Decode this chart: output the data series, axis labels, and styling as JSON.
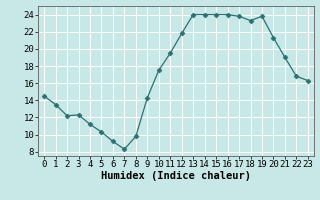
{
  "x": [
    0,
    1,
    2,
    3,
    4,
    5,
    6,
    7,
    8,
    9,
    10,
    11,
    12,
    13,
    14,
    15,
    16,
    17,
    18,
    19,
    20,
    21,
    22,
    23
  ],
  "y": [
    14.5,
    13.5,
    12.2,
    12.3,
    11.2,
    10.3,
    9.2,
    8.3,
    9.8,
    14.3,
    17.5,
    19.5,
    21.8,
    24.0,
    24.0,
    24.0,
    24.0,
    23.8,
    23.3,
    23.8,
    21.3,
    19.0,
    16.8,
    16.3
  ],
  "line_color": "#2d7070",
  "marker": "D",
  "marker_size": 2.5,
  "bg_color": "#c8e8e8",
  "grid_color": "#ffffff",
  "xlabel": "Humidex (Indice chaleur)",
  "xlabel_fontsize": 7.5,
  "tick_fontsize": 6.5,
  "ylim": [
    7.5,
    25.0
  ],
  "xlim": [
    -0.5,
    23.5
  ],
  "yticks": [
    8,
    10,
    12,
    14,
    16,
    18,
    20,
    22,
    24
  ],
  "xticks": [
    0,
    1,
    2,
    3,
    4,
    5,
    6,
    7,
    8,
    9,
    10,
    11,
    12,
    13,
    14,
    15,
    16,
    17,
    18,
    19,
    20,
    21,
    22,
    23
  ],
  "figwidth": 3.2,
  "figheight": 2.0,
  "dpi": 100
}
